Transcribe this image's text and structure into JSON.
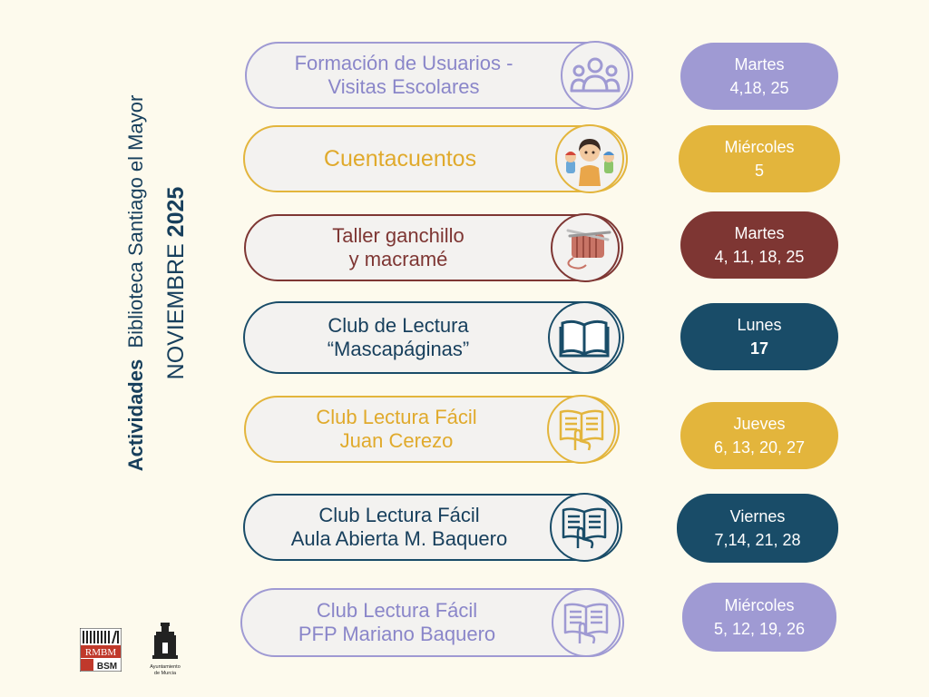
{
  "side_title": {
    "line1_bold": "Actividades",
    "line1_rest": "Biblioteca Santiago el Mayor",
    "line2_month": "NOVIEMBRE",
    "line2_year": "2025"
  },
  "colors": {
    "lavender": "#9f9ad3",
    "gold": "#e3b53c",
    "maroon": "#7e3633",
    "navy": "#194c68"
  },
  "activities": [
    {
      "line1": "Formación de Usuarios -",
      "line2": "Visitas Escolares",
      "icon": "group-of-people-icon",
      "day": "Martes",
      "dates": "4,18, 25"
    },
    {
      "line1": "Cuentacuentos",
      "line2": "",
      "icon": "storyteller-puppets-icon",
      "day": "Miércoles",
      "dates": "5"
    },
    {
      "line1": "Taller ganchillo",
      "line2": "y macramé",
      "icon": "knitting-yarn-icon",
      "day": "Martes",
      "dates": "4, 11, 18, 25"
    },
    {
      "line1": "Club de Lectura",
      "line2": "“Mascapáginas”",
      "icon": "open-book-icon",
      "day": "Lunes",
      "dates": "17"
    },
    {
      "line1": "Club Lectura Fácil",
      "line2": "Juan Cerezo",
      "icon": "easy-reading-book-icon",
      "day": "Jueves",
      "dates": "6, 13, 20, 27"
    },
    {
      "line1": "Club Lectura Fácil",
      "line2": "Aula Abierta M. Baquero",
      "icon": "easy-reading-book-icon",
      "day": "Viernes",
      "dates": "7,14, 21, 28"
    },
    {
      "line1": "Club Lectura Fácil",
      "line2": "PFP Mariano Baquero",
      "icon": "easy-reading-book-icon",
      "day": "Miércoles",
      "dates": "5, 12, 19, 26"
    }
  ],
  "logos": {
    "rmbm_top": "RMBM",
    "rmbm_bottom": "BSM",
    "murcia_line1": "Ayuntamiento",
    "murcia_line2": "de Murcia"
  }
}
